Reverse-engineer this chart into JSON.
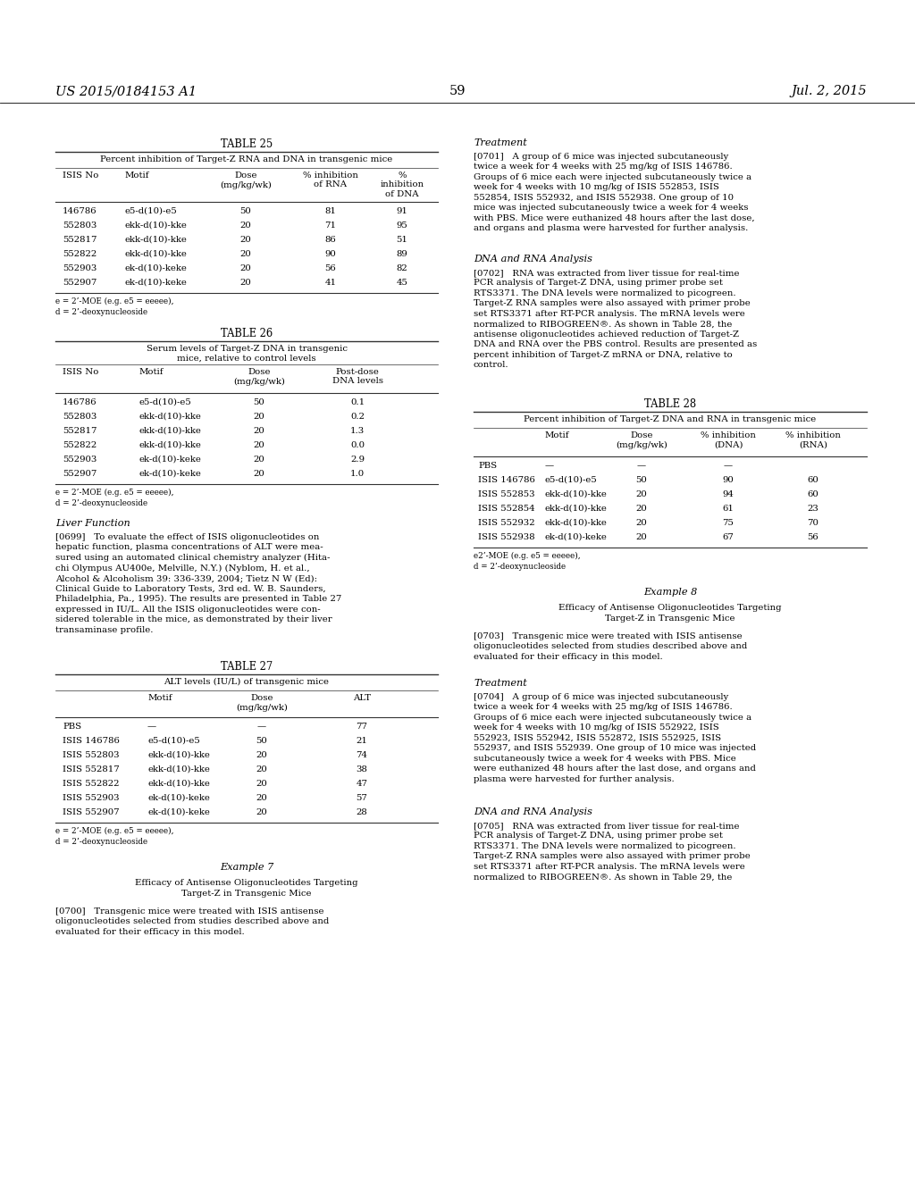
{
  "page_number": "59",
  "header_left": "US 2015/0184153 A1",
  "header_right": "Jul. 2, 2015",
  "bg_color": "#ffffff"
}
